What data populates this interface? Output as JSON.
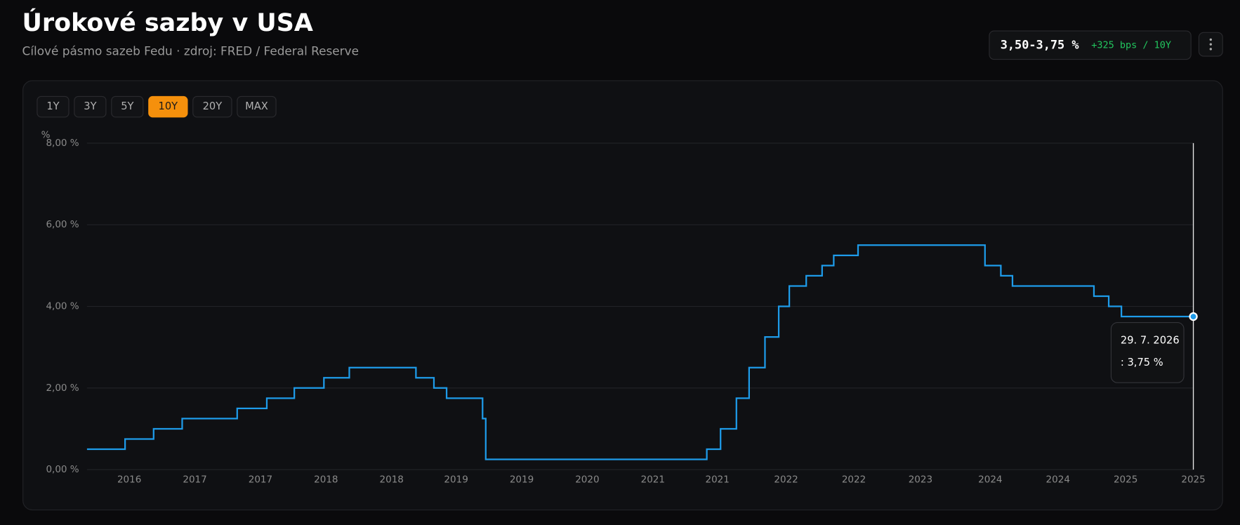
{
  "header": {
    "title": "Úrokové sazby v USA",
    "subtitle": "Cílové pásmo sazeb Fedu · zdroj: FRED / Federal Reserve"
  },
  "badge": {
    "value": "3,50-3,75 %",
    "change": "+325 bps / 10Y"
  },
  "range_buttons": {
    "options": [
      "1Y",
      "3Y",
      "5Y",
      "10Y",
      "20Y",
      "MAX"
    ],
    "active_index": 3
  },
  "chart_data": {
    "type": "line",
    "y_unit": "%",
    "xlim": [
      2016.11,
      2026.57
    ],
    "xticks": [
      {
        "value": 2016.51,
        "label": "2016"
      },
      {
        "value": 2017.13,
        "label": "2017"
      },
      {
        "value": 2017.75,
        "label": "2017"
      },
      {
        "value": 2018.37,
        "label": "2018"
      },
      {
        "value": 2018.99,
        "label": "2018"
      },
      {
        "value": 2019.6,
        "label": "2019"
      },
      {
        "value": 2020.22,
        "label": "2019"
      },
      {
        "value": 2020.84,
        "label": "2020"
      },
      {
        "value": 2021.46,
        "label": "2021"
      },
      {
        "value": 2022.07,
        "label": "2021"
      },
      {
        "value": 2022.72,
        "label": "2022"
      },
      {
        "value": 2023.36,
        "label": "2022"
      },
      {
        "value": 2023.99,
        "label": "2023"
      },
      {
        "value": 2024.65,
        "label": "2024"
      },
      {
        "value": 2025.29,
        "label": "2024"
      },
      {
        "value": 2025.93,
        "label": "2025"
      },
      {
        "value": 2026.57,
        "label": "2025"
      }
    ],
    "ylim": [
      0,
      8
    ],
    "yticks": [
      {
        "value": 0,
        "label": "0,00 %"
      },
      {
        "value": 2,
        "label": "2,00 %"
      },
      {
        "value": 4,
        "label": "4,00 %"
      },
      {
        "value": 6,
        "label": "6,00 %"
      },
      {
        "value": 8,
        "label": "8,00 %"
      }
    ],
    "grid": true,
    "series": [
      {
        "color": "#1e9be9",
        "x": [
          2016.11,
          2016.47,
          2016.47,
          2016.74,
          2016.74,
          2017.01,
          2017.01,
          2017.53,
          2017.53,
          2017.81,
          2017.81,
          2018.07,
          2018.07,
          2018.35,
          2018.35,
          2018.59,
          2018.59,
          2019.22,
          2019.22,
          2019.39,
          2019.39,
          2019.51,
          2019.51,
          2019.85,
          2019.85,
          2019.88,
          2019.88,
          2021.97,
          2021.97,
          2022.1,
          2022.1,
          2022.25,
          2022.25,
          2022.37,
          2022.37,
          2022.52,
          2022.52,
          2022.65,
          2022.65,
          2022.75,
          2022.75,
          2022.91,
          2022.91,
          2023.06,
          2023.06,
          2023.17,
          2023.17,
          2023.4,
          2023.4,
          2024.6,
          2024.6,
          2024.75,
          2024.75,
          2024.86,
          2024.86,
          2025.63,
          2025.63,
          2025.77,
          2025.77,
          2025.89,
          2025.89,
          2026.57
        ],
        "values": [
          0.5,
          0.5,
          0.75,
          0.75,
          1.0,
          1.0,
          1.25,
          1.25,
          1.5,
          1.5,
          1.75,
          1.75,
          2.0,
          2.0,
          2.25,
          2.25,
          2.5,
          2.5,
          2.25,
          2.25,
          2.0,
          2.0,
          1.75,
          1.75,
          1.25,
          1.25,
          0.25,
          0.25,
          0.5,
          0.5,
          1.0,
          1.0,
          1.75,
          1.75,
          2.5,
          2.5,
          3.25,
          3.25,
          4.0,
          4.0,
          4.5,
          4.5,
          4.75,
          4.75,
          5.0,
          5.0,
          5.25,
          5.25,
          5.5,
          5.5,
          5.0,
          5.0,
          4.75,
          4.75,
          4.5,
          4.5,
          4.25,
          4.25,
          4.0,
          4.0,
          3.75,
          3.75
        ]
      }
    ],
    "tooltip": {
      "date": "29. 7. 2026",
      "value_label": ": 3,75 %"
    }
  }
}
